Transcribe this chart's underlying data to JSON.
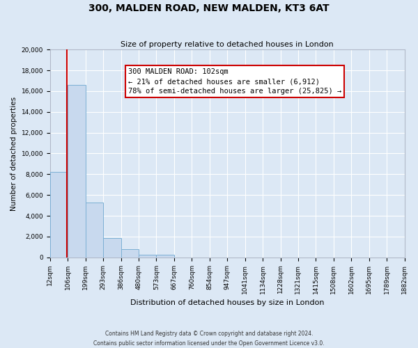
{
  "title": "300, MALDEN ROAD, NEW MALDEN, KT3 6AT",
  "subtitle": "Size of property relative to detached houses in London",
  "xlabel": "Distribution of detached houses by size in London",
  "ylabel": "Number of detached properties",
  "bar_color": "#c8d9ee",
  "bar_edge_color": "#7bafd4",
  "bg_color": "#dce8f5",
  "grid_color": "#ffffff",
  "annotation_box_color": "#ffffff",
  "annotation_border_color": "#cc0000",
  "property_line_color": "#cc0000",
  "categories": [
    "12sqm",
    "106sqm",
    "199sqm",
    "293sqm",
    "386sqm",
    "480sqm",
    "573sqm",
    "667sqm",
    "760sqm",
    "854sqm",
    "947sqm",
    "1041sqm",
    "1134sqm",
    "1228sqm",
    "1321sqm",
    "1415sqm",
    "1508sqm",
    "1602sqm",
    "1695sqm",
    "1789sqm",
    "1882sqm"
  ],
  "bar_edges": [
    12,
    106,
    199,
    293,
    386,
    480,
    573,
    667,
    760,
    854,
    947,
    1041,
    1134,
    1228,
    1321,
    1415,
    1508,
    1602,
    1695,
    1789,
    1882
  ],
  "values": [
    8200,
    16600,
    5300,
    1850,
    800,
    280,
    280,
    0,
    0,
    0,
    0,
    0,
    0,
    0,
    0,
    0,
    0,
    0,
    0,
    0
  ],
  "ylim": [
    0,
    20000
  ],
  "yticks": [
    0,
    2000,
    4000,
    6000,
    8000,
    10000,
    12000,
    14000,
    16000,
    18000,
    20000
  ],
  "property_value": 102,
  "property_label": "300 MALDEN ROAD: 102sqm",
  "annotation_line1": "← 21% of detached houses are smaller (6,912)",
  "annotation_line2": "78% of semi-detached houses are larger (25,825) →",
  "footer_line1": "Contains HM Land Registry data © Crown copyright and database right 2024.",
  "footer_line2": "Contains public sector information licensed under the Open Government Licence v3.0."
}
